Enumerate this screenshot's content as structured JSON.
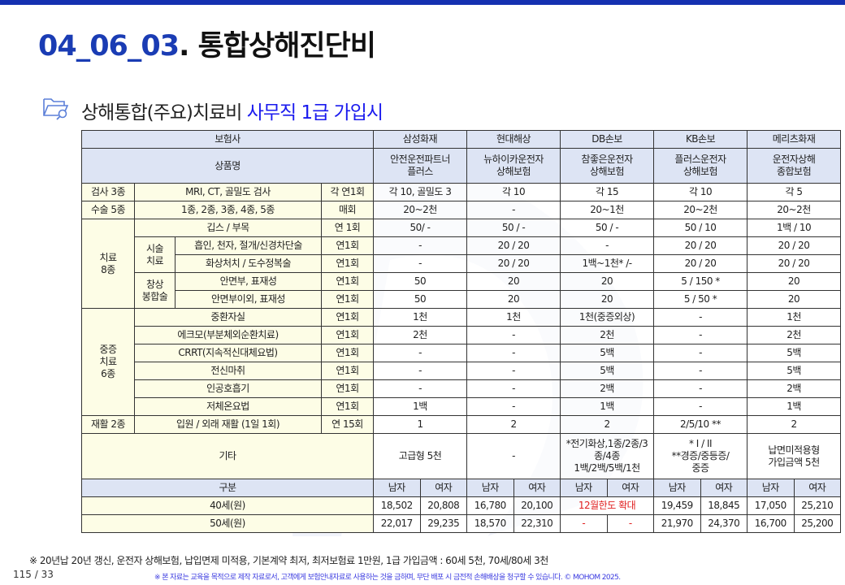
{
  "header": {
    "title_number": "04_06_03",
    "title_text": ". 통합상해진단비"
  },
  "subtitle": {
    "icon": "folder-search-icon",
    "text": "상해통합(주요)치료비",
    "highlight": "사무직 1급 가입시",
    "highlight_color": "#1a1aee"
  },
  "colors": {
    "brand": "#1530b0",
    "header_bg": "#dde4f4",
    "label_bg": "#fdfde6",
    "alert": "#e02020"
  },
  "table": {
    "company_label": "보험사",
    "companies": [
      "삼성화재",
      "현대해상",
      "DB손보",
      "KB손보",
      "메리츠화재"
    ],
    "product_label": "상품명",
    "products": [
      "안전운전파트너\n플러스",
      "뉴하이카운전자\n상해보험",
      "참좋은운전자\n상해보험",
      "플러스운전자\n상해보험",
      "운전자상해\n종합보험"
    ],
    "groups": {
      "treatment": "치료\n8종",
      "procedure": "시술\n치료",
      "suture": "창상\n봉합술",
      "critical": "중증\n치료\n6종"
    },
    "rows": [
      {
        "category": "검사 3종",
        "item": "MRI, CT, 골밀도 검사",
        "freq": "각 연1회",
        "values": [
          "각 10, 골밀도 3",
          "각 10",
          "각 15",
          "각 10",
          "각 5"
        ]
      },
      {
        "category": "수술 5종",
        "item": "1종, 2종, 3종, 4종, 5종",
        "freq": "매회",
        "values": [
          "20~2천",
          "-",
          "20~1천",
          "20~2천",
          "20~2천"
        ]
      },
      {
        "item": "깁스 / 부목",
        "freq": "연 1회",
        "values": [
          "50/ -",
          "50 / -",
          "50 / -",
          "50 / 10",
          "1백 / 10"
        ]
      },
      {
        "item": "흡인, 천자, 절개/신경차단술",
        "freq": "연1회",
        "values": [
          "-",
          "20 / 20",
          "-",
          "20 / 20",
          "20 / 20"
        ]
      },
      {
        "item": "화상처치 / 도수정복술",
        "freq": "연1회",
        "values": [
          "-",
          "20 / 20",
          "1백~1천* /-",
          "20 / 20",
          "20 / 20"
        ]
      },
      {
        "item": "안면부, 표재성",
        "freq": "연1회",
        "values": [
          "50",
          "20",
          "20",
          "5 / 150 *",
          "20"
        ]
      },
      {
        "item": "안면부이외, 표재성",
        "freq": "연1회",
        "values": [
          "50",
          "20",
          "20",
          "5 / 50 *",
          "20"
        ]
      },
      {
        "item": "중환자실",
        "freq": "연1회",
        "values": [
          "1천",
          "1천",
          "1천(중증외상)",
          "-",
          "1천"
        ]
      },
      {
        "item": "에크모(부분체외순환치료)",
        "freq": "연1회",
        "values": [
          "2천",
          "-",
          "2천",
          "-",
          "2천"
        ]
      },
      {
        "item": "CRRT(지속적신대체요법)",
        "freq": "연1회",
        "values": [
          "-",
          "-",
          "5백",
          "-",
          "5백"
        ]
      },
      {
        "item": "전신마취",
        "freq": "연1회",
        "values": [
          "-",
          "-",
          "5백",
          "-",
          "5백"
        ]
      },
      {
        "item": "인공호흡기",
        "freq": "연1회",
        "values": [
          "-",
          "-",
          "2백",
          "-",
          "2백"
        ]
      },
      {
        "item": "저체온요법",
        "freq": "연1회",
        "values": [
          "1백",
          "-",
          "1백",
          "-",
          "1백"
        ]
      },
      {
        "category": "재활 2종",
        "item": "입원 / 외래 재활 (1일 1회)",
        "freq": "연 15회",
        "values": [
          "1",
          "2",
          "2",
          "2/5/10 **",
          "2"
        ]
      },
      {
        "item": "기타",
        "values": [
          "고급형 5천",
          "-",
          "*전기화상,1종/2종/3\n종/4종\n1백/2백/5백/1천",
          "* I / II\n**경증/중등증/\n중증",
          "납면미적용형\n가입금액 5천"
        ]
      }
    ],
    "premium_label": "구분",
    "genders": [
      "남자",
      "여자"
    ],
    "premiums": [
      {
        "age": "40세(원)",
        "values": [
          "18,502",
          "20,808",
          "16,780",
          "20,100",
          "12월한도 확대",
          "19,459",
          "18,845",
          "17,050",
          "25,210"
        ]
      },
      {
        "age": "50세(원)",
        "values": [
          "22,017",
          "29,235",
          "18,570",
          "22,310",
          "-",
          "-",
          "21,970",
          "24,370",
          "16,700",
          "25,200"
        ]
      }
    ]
  },
  "footer": {
    "note": "※ 20년납 20년 갱신, 운전자 상해보험, 납입면제 미적용, 기본계약 최저, 최저보험료 1만원, 1급 가입금액 : 60세 5천, 70세/80세 3천",
    "page": "115 / 33",
    "disclaimer": "※ 본 자료는 교육을 목적으로 제작 자료로서, 고객에게 보험안내자료로 사용하는 것을 금하며, 무단 배포 시 금전적 손해배상을 청구할 수 있습니다. © MOHOM 2025."
  }
}
